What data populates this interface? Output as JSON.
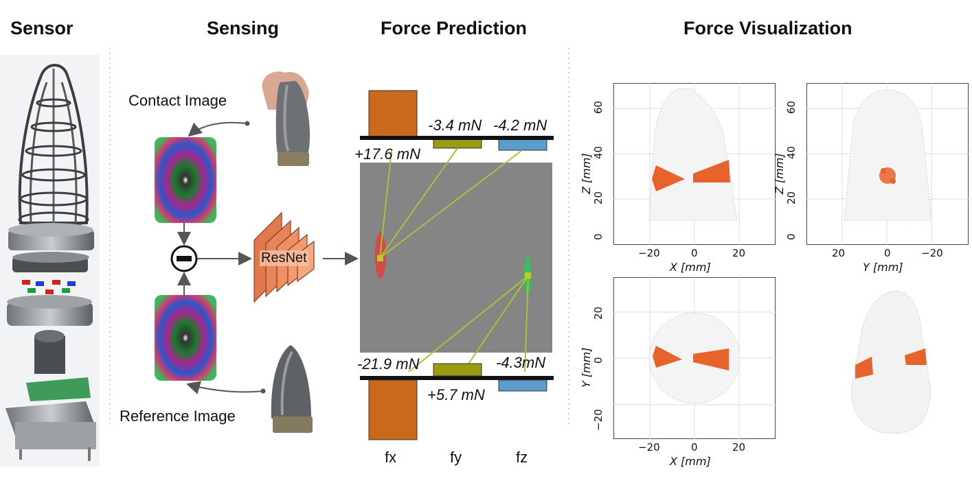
{
  "headers": {
    "sensor": "Sensor",
    "sensing": "Sensing",
    "force_prediction": "Force Prediction",
    "force_visualization": "Force Visualization"
  },
  "sensing": {
    "contact_label": "Contact Image",
    "reference_label": "Reference Image",
    "network_label": "ResNet"
  },
  "force_prediction": {
    "contact_values": {
      "fx": "+17.6 mN",
      "fy": "-3.4 mN",
      "fz": "-4.2 mN"
    },
    "reference_values": {
      "fx": "-21.9 mN",
      "fy": "+5.7 mN",
      "fz": "-4.3mN"
    },
    "axis_labels": {
      "fx": "fx",
      "fy": "fy",
      "fz": "fz"
    },
    "colors": {
      "fx": "#c8691e",
      "fy": "#9a9b10",
      "fz": "#5b9ccb"
    }
  },
  "force_visualization": {
    "plot_xz": {
      "xlabel": "X [mm]",
      "ylabel": "Z [mm]",
      "xticks": [
        "−20",
        "0",
        "20"
      ],
      "yticks": [
        "0",
        "20",
        "40",
        "60"
      ]
    },
    "plot_yz": {
      "xlabel": "Y [mm]",
      "ylabel": "Z [mm]",
      "xticks": [
        "20",
        "0",
        "−20"
      ],
      "yticks": [
        "0",
        "20",
        "40",
        "60"
      ]
    },
    "plot_xy": {
      "xlabel": "X [mm]",
      "ylabel": "Y [mm]",
      "xticks": [
        "−20",
        "0",
        "20"
      ],
      "yticks": [
        "−20",
        "0",
        "20"
      ]
    },
    "contact_color": "#e8622c"
  },
  "chart_data": {
    "type": "bar",
    "categories": [
      "fx",
      "fy",
      "fz"
    ],
    "series": [
      {
        "values": [
          17.6,
          -3.4,
          -4.2
        ]
      },
      {
        "values": [
          -21.9,
          5.7,
          -4.3
        ]
      }
    ],
    "title": "",
    "xlabel": "",
    "ylabel": ""
  }
}
